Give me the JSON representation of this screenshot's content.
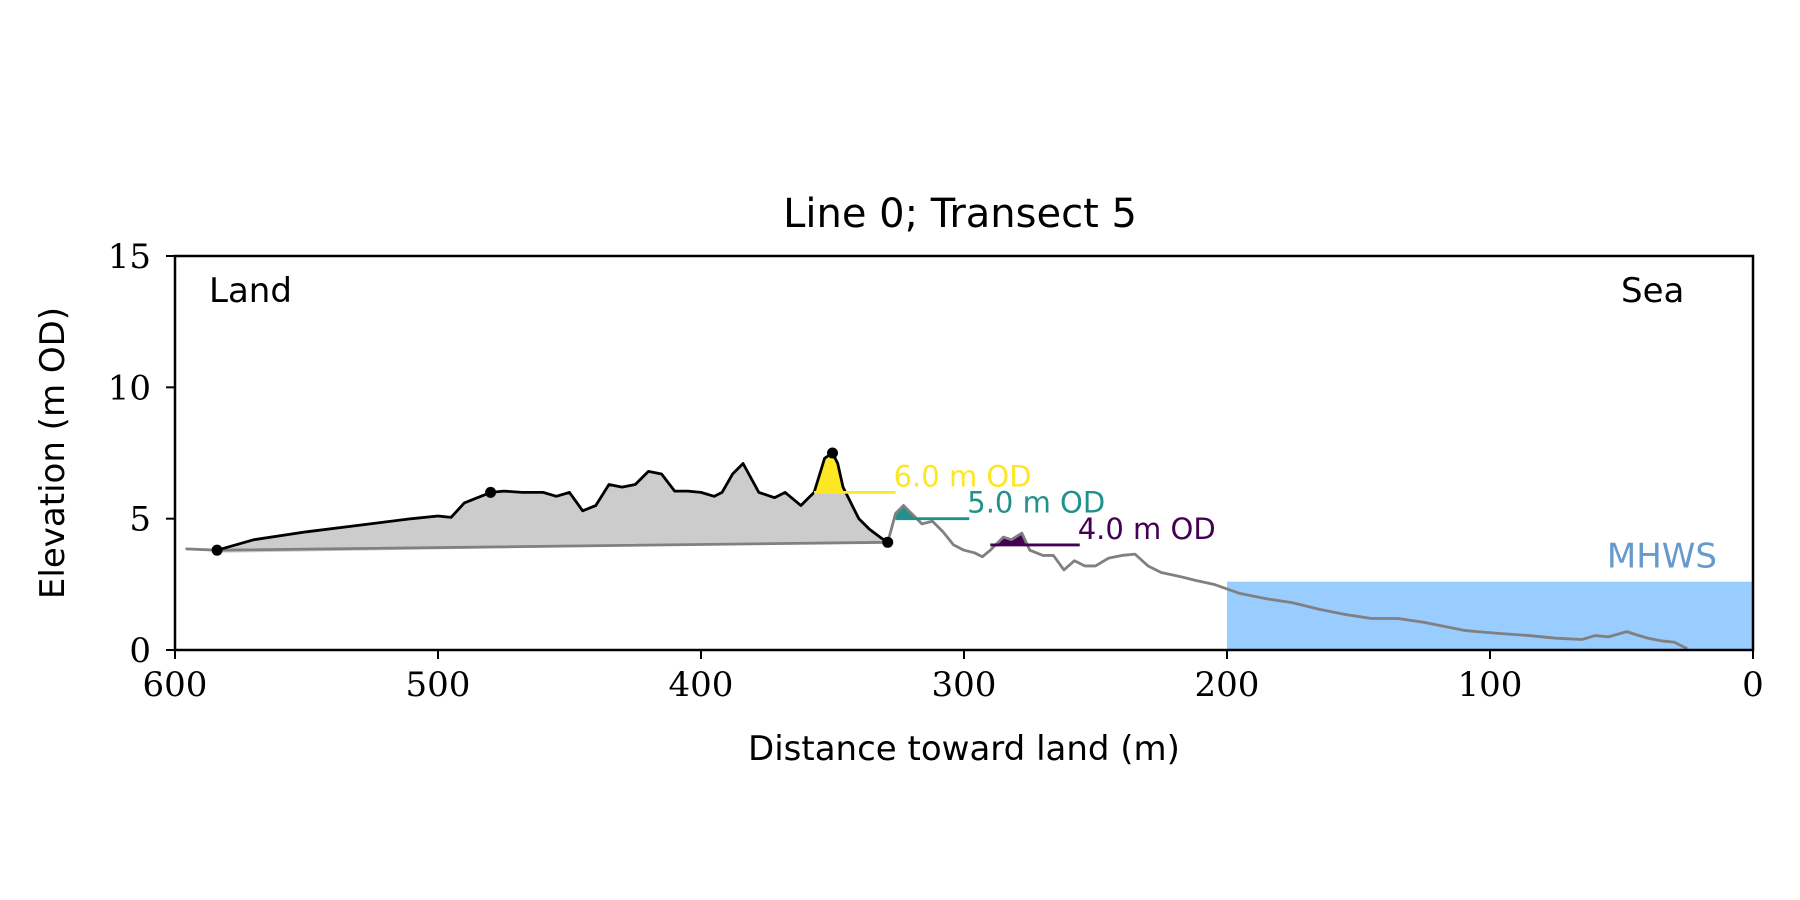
{
  "chart_data": {
    "type": "area",
    "title": "Line 0; Transect 5",
    "xlabel": "Distance toward land (m)",
    "ylabel": "Elevation (m OD)",
    "xlim": [
      600,
      0
    ],
    "ylim": [
      0,
      15
    ],
    "x_ticks": [
      600,
      500,
      400,
      300,
      200,
      100,
      0
    ],
    "y_ticks": [
      0,
      5,
      10,
      15
    ],
    "x_tick_labels": [
      "600",
      "500",
      "400",
      "300",
      "200",
      "100",
      "0"
    ],
    "y_tick_labels": [
      "0",
      "5",
      "10",
      "15"
    ],
    "grid": false,
    "corner_labels": {
      "land": "Land",
      "sea": "Sea"
    },
    "mhws": {
      "label": "MHWS",
      "level": 2.6,
      "x_from": 200,
      "x_to": 0,
      "color": "#99ccff"
    },
    "thresholds": [
      {
        "label": "6.0 m OD",
        "level": 6.0,
        "color": "#fde725",
        "x_from": 357,
        "x_to": 326
      },
      {
        "label": "5.0 m OD",
        "level": 5.0,
        "color": "#21918c",
        "x_from": 326,
        "x_to": 298
      },
      {
        "label": "4.0 m OD",
        "level": 4.0,
        "color": "#440154",
        "x_from": 290,
        "x_to": 256
      }
    ],
    "series": [
      {
        "role": "dune-profile",
        "color": "#000000",
        "x": [
          584,
          570,
          550,
          530,
          510,
          500,
          495,
          490,
          485,
          480,
          475,
          468,
          460,
          455,
          450,
          445,
          440,
          435,
          430,
          425,
          420,
          415,
          410,
          405,
          400,
          395,
          392,
          388,
          384,
          378,
          372,
          368,
          362,
          357,
          353,
          350,
          348,
          346,
          344,
          340,
          336,
          332,
          329
        ],
        "y": [
          3.8,
          4.2,
          4.5,
          4.75,
          5.0,
          5.1,
          5.05,
          5.6,
          5.8,
          6.0,
          6.05,
          6.0,
          6.0,
          5.85,
          6.0,
          5.3,
          5.5,
          6.3,
          6.2,
          6.3,
          6.8,
          6.7,
          6.05,
          6.05,
          6.0,
          5.85,
          6.0,
          6.7,
          7.1,
          6.0,
          5.8,
          6.0,
          5.5,
          6.0,
          7.3,
          7.5,
          7.1,
          6.2,
          5.8,
          5.0,
          4.6,
          4.3,
          4.1
        ]
      },
      {
        "role": "outer-profile",
        "color": "#808080",
        "x": [
          596,
          584,
          329,
          326,
          323,
          320,
          316,
          312,
          308,
          304,
          300,
          296,
          293,
          290,
          285,
          282,
          278,
          275,
          270,
          266,
          262,
          258,
          254,
          250,
          245,
          240,
          235,
          230,
          225,
          218,
          212,
          205,
          195,
          185,
          175,
          165,
          155,
          145,
          135,
          125,
          115,
          110,
          105,
          95,
          85,
          75,
          65,
          60,
          55,
          48,
          45,
          40,
          35,
          30,
          25
        ],
        "y": [
          3.85,
          3.8,
          4.1,
          5.2,
          5.5,
          5.2,
          4.8,
          4.9,
          4.5,
          4.0,
          3.8,
          3.7,
          3.55,
          3.8,
          4.3,
          4.2,
          4.45,
          3.8,
          3.6,
          3.6,
          3.05,
          3.4,
          3.2,
          3.2,
          3.5,
          3.6,
          3.65,
          3.2,
          2.95,
          2.8,
          2.65,
          2.5,
          2.15,
          1.95,
          1.8,
          1.55,
          1.35,
          1.2,
          1.2,
          1.05,
          0.85,
          0.75,
          0.7,
          0.62,
          0.55,
          0.45,
          0.4,
          0.55,
          0.5,
          0.7,
          0.6,
          0.45,
          0.35,
          0.3,
          0.05
        ]
      }
    ],
    "markers": [
      {
        "x": 584,
        "y": 3.8
      },
      {
        "x": 480,
        "y": 6.0
      },
      {
        "x": 350,
        "y": 7.5
      },
      {
        "x": 329,
        "y": 4.1
      }
    ],
    "fills": {
      "dune_area_color": "#cccccc",
      "base_line": {
        "x_from": 584,
        "y_from": 3.7,
        "x_to": 329,
        "y_to": 4.1
      }
    }
  }
}
